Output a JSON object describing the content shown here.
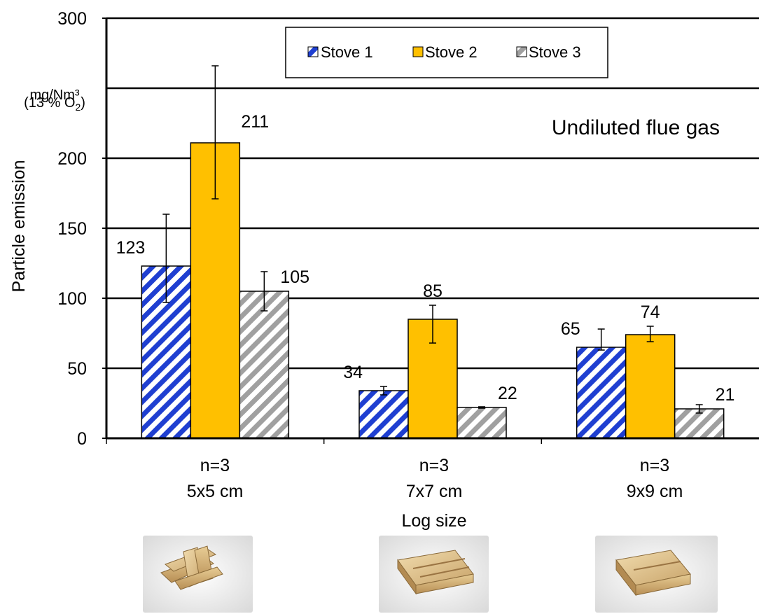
{
  "chart_data": {
    "type": "bar",
    "title": "",
    "annotation": "Undiluted flue gas",
    "xlabel": "Log size",
    "ylabel": "Particle emission",
    "unit_line1": "mg/Nm³",
    "unit_line2_prefix": "(13 % O",
    "unit_line2_sub": "2",
    "unit_line2_suffix": ")",
    "ylim": [
      0,
      300
    ],
    "yticks": [
      "0",
      "50",
      "100",
      "150",
      "200",
      "300"
    ],
    "extra_gridline": 250,
    "grid": true,
    "legend_position": "top-center",
    "categories": [
      {
        "line1": "n=3",
        "line2": "5x5 cm"
      },
      {
        "line1": "n=3",
        "line2": "7x7 cm"
      },
      {
        "line1": "n=3",
        "line2": "9x9 cm"
      }
    ],
    "series": [
      {
        "name": "Stove 1",
        "color": "#1f3fd1",
        "pattern": "blue-diagonal-stripes",
        "values": [
          123,
          34,
          65
        ],
        "err_low": [
          97,
          31,
          63
        ],
        "err_high": [
          160,
          37,
          78
        ],
        "labels": [
          "123",
          "34",
          "65"
        ]
      },
      {
        "name": "Stove 2",
        "color": "#ffc000",
        "pattern": "solid",
        "values": [
          211,
          85,
          74
        ],
        "err_low": [
          171,
          68,
          69
        ],
        "err_high": [
          266,
          95,
          80
        ],
        "labels": [
          "211",
          "85",
          "74"
        ]
      },
      {
        "name": "Stove 3",
        "color": "#a0a0a0",
        "pattern": "gray-diagonal-stripes",
        "values": [
          105,
          22,
          21
        ],
        "err_low": [
          91,
          21.5,
          18
        ],
        "err_high": [
          119,
          22.5,
          24
        ],
        "labels": [
          "105",
          "22",
          "21"
        ]
      }
    ]
  },
  "images": [
    {
      "icon": "wood-log-stack-5x5-photo"
    },
    {
      "icon": "wood-log-stack-7x7-photo"
    },
    {
      "icon": "wood-log-stack-9x9-photo"
    }
  ]
}
